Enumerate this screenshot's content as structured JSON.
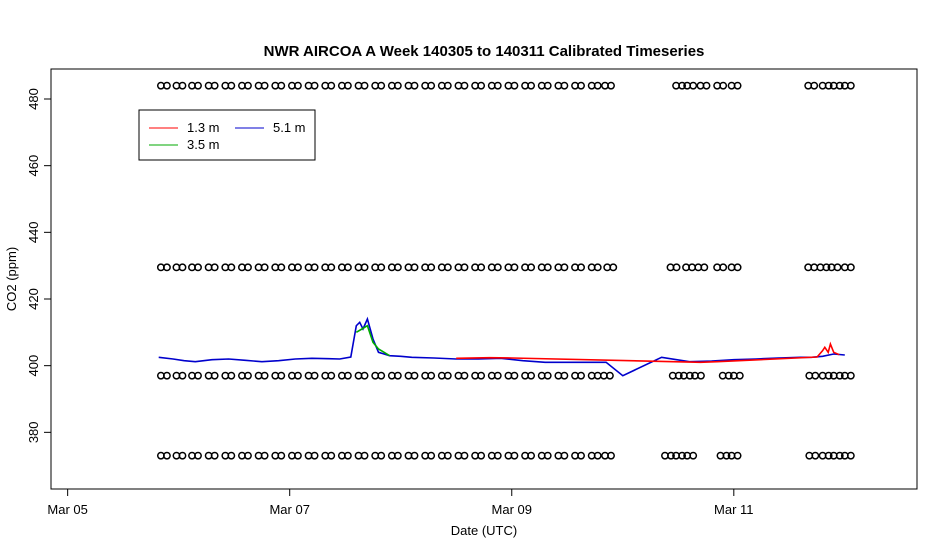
{
  "chart_data": {
    "type": "line",
    "title": "NWR AIRCOA A  Week 140305 to 140311  Calibrated Timeseries",
    "xlabel": "Date (UTC)",
    "ylabel": "CO2 (ppm)",
    "xlim": [
      4.85,
      12.65
    ],
    "ylim": [
      363,
      489
    ],
    "x_ticks": [
      {
        "value": 5,
        "label": "Mar 05"
      },
      {
        "value": 7,
        "label": "Mar 07"
      },
      {
        "value": 9,
        "label": "Mar 09"
      },
      {
        "value": 11,
        "label": "Mar 11"
      }
    ],
    "y_ticks": [
      {
        "value": 380,
        "label": "380"
      },
      {
        "value": 400,
        "label": "400"
      },
      {
        "value": 420,
        "label": "420"
      },
      {
        "value": 440,
        "label": "440"
      },
      {
        "value": 460,
        "label": "460"
      },
      {
        "value": 480,
        "label": "480"
      }
    ],
    "legend": {
      "placement": "top-left",
      "entries": [
        {
          "label": "1.3 m",
          "color": "#ff0000"
        },
        {
          "label": "3.5 m",
          "color": "#00aa00"
        },
        {
          "label": "5.1 m",
          "color": "#0000cc"
        }
      ]
    },
    "grid": false,
    "series": [
      {
        "name": "5.1 m",
        "color": "#0000cc",
        "x": [
          5.82,
          5.95,
          6.05,
          6.15,
          6.3,
          6.45,
          6.6,
          6.75,
          6.9,
          7.05,
          7.2,
          7.35,
          7.45,
          7.55,
          7.6,
          7.63,
          7.66,
          7.7,
          7.75,
          7.8,
          7.9,
          8.0,
          8.1,
          8.3,
          8.5,
          8.7,
          8.9,
          9.1,
          9.3,
          9.5,
          9.7,
          9.85,
          10.0,
          10.35,
          10.6,
          10.8,
          11.0,
          11.2,
          11.4,
          11.6,
          11.7,
          11.8,
          11.9,
          12.0
        ],
        "y": [
          402.5,
          402,
          401.5,
          401.2,
          401.8,
          402,
          401.6,
          401.2,
          401.5,
          402,
          402.2,
          402.1,
          402,
          402.6,
          412,
          413,
          411,
          414,
          408,
          404,
          403,
          402.8,
          402.5,
          402.3,
          402,
          402,
          402.2,
          401.5,
          401,
          401,
          401,
          401,
          397,
          402.5,
          401.2,
          401.4,
          401.8,
          402,
          402.3,
          402.5,
          402.5,
          402.8,
          403.5,
          403.2
        ]
      },
      {
        "name": "3.5 m",
        "color": "#00aa00",
        "x": [
          7.6,
          7.65,
          7.7,
          7.75,
          7.8,
          7.85,
          7.9
        ],
        "y": [
          410,
          411,
          412,
          407,
          405,
          404,
          403
        ]
      },
      {
        "name": "1.3 m",
        "color": "#ff0000",
        "x": [
          8.5,
          8.8,
          9.0,
          10.7,
          10.85,
          11.75,
          11.8,
          11.82,
          11.85,
          11.87,
          11.9,
          11.95
        ],
        "y": [
          402.2,
          402.4,
          402.3,
          401.0,
          401.2,
          402.6,
          404.5,
          405.5,
          404,
          406.5,
          404,
          403.3
        ]
      }
    ],
    "markers": [
      {
        "name": "reference-level-484",
        "y": 484,
        "x": [
          5.84,
          5.98,
          6.12,
          6.27,
          6.42,
          6.57,
          6.72,
          6.87,
          7.02,
          7.17,
          7.32,
          7.47,
          7.62,
          7.77,
          7.92,
          8.07,
          8.22,
          8.37,
          8.52,
          8.67,
          8.82,
          8.97,
          9.12,
          9.27,
          9.42,
          9.57,
          9.72,
          9.84,
          10.48,
          10.58,
          10.7,
          10.85,
          10.98,
          11.67,
          11.8,
          11.9,
          12.0
        ]
      },
      {
        "name": "reference-level-429",
        "y": 429.5,
        "x": [
          5.84,
          5.98,
          6.12,
          6.27,
          6.42,
          6.57,
          6.72,
          6.87,
          7.02,
          7.17,
          7.32,
          7.47,
          7.62,
          7.77,
          7.92,
          8.07,
          8.22,
          8.37,
          8.52,
          8.67,
          8.82,
          8.97,
          9.12,
          9.27,
          9.42,
          9.57,
          9.72,
          9.86,
          10.43,
          10.57,
          10.68,
          10.85,
          10.98,
          11.67,
          11.78,
          11.88,
          12.0
        ]
      },
      {
        "name": "reference-level-397",
        "y": 397,
        "x": [
          5.84,
          5.98,
          6.12,
          6.27,
          6.42,
          6.57,
          6.72,
          6.87,
          7.02,
          7.17,
          7.32,
          7.47,
          7.62,
          7.77,
          7.92,
          8.07,
          8.22,
          8.37,
          8.52,
          8.67,
          8.82,
          8.97,
          9.12,
          9.27,
          9.42,
          9.57,
          9.72,
          9.83,
          10.45,
          10.55,
          10.65,
          10.9,
          11.0,
          11.68,
          11.8,
          11.9,
          12.0
        ]
      },
      {
        "name": "reference-level-373",
        "y": 373,
        "x": [
          5.84,
          5.98,
          6.12,
          6.27,
          6.42,
          6.57,
          6.72,
          6.87,
          7.02,
          7.17,
          7.32,
          7.47,
          7.62,
          7.77,
          7.92,
          8.07,
          8.22,
          8.37,
          8.52,
          8.67,
          8.82,
          8.97,
          9.12,
          9.27,
          9.42,
          9.57,
          9.72,
          9.84,
          10.38,
          10.48,
          10.58,
          10.88,
          10.98,
          11.68,
          11.8,
          11.9,
          12.0
        ]
      }
    ]
  }
}
